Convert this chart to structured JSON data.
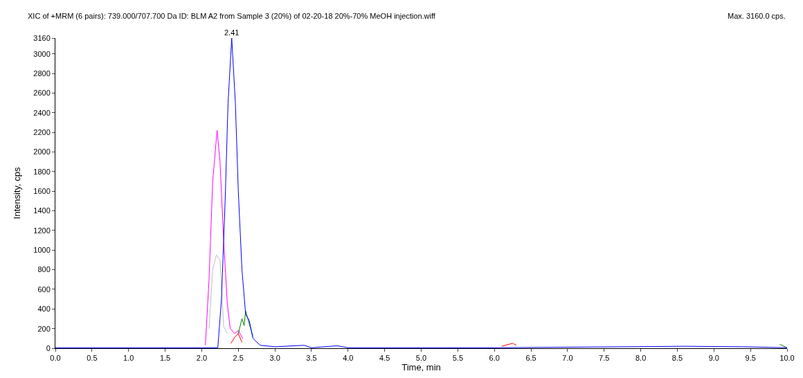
{
  "chart_data": {
    "type": "line",
    "title": "XIC of +MRM (6 pairs): 739.000/707.700 Da ID: BLM A2 from Sample 3 (20%) of 02-20-18 20%-70% MeOH injection.wiff",
    "subtitle": "Max. 3160.0 cps.",
    "xlabel": "Time, min",
    "ylabel": "Intensity, cps",
    "xlim": [
      0,
      10
    ],
    "ylim": [
      0,
      3160
    ],
    "xticks": [
      {
        "value": 0,
        "label": "0.0"
      },
      {
        "value": 0.5,
        "label": "0.5"
      },
      {
        "value": 1,
        "label": "1.0"
      },
      {
        "value": 1.5,
        "label": "1.5"
      },
      {
        "value": 2,
        "label": "2.0"
      },
      {
        "value": 2.5,
        "label": "2.5"
      },
      {
        "value": 3,
        "label": "3.0"
      },
      {
        "value": 3.5,
        "label": "3.5"
      },
      {
        "value": 4,
        "label": "4.0"
      },
      {
        "value": 4.5,
        "label": "4.5"
      },
      {
        "value": 5,
        "label": "5.0"
      },
      {
        "value": 5.5,
        "label": "5.5"
      },
      {
        "value": 6,
        "label": "6.0"
      },
      {
        "value": 6.5,
        "label": "6.5"
      },
      {
        "value": 7,
        "label": "7.0"
      },
      {
        "value": 7.5,
        "label": "7.5"
      },
      {
        "value": 8,
        "label": "8.0"
      },
      {
        "value": 8.5,
        "label": "8.5"
      },
      {
        "value": 9,
        "label": "9.0"
      },
      {
        "value": 9.5,
        "label": "9.5"
      },
      {
        "value": 10,
        "label": "10.0"
      }
    ],
    "yticks": [
      0,
      200,
      400,
      600,
      800,
      1000,
      1200,
      1400,
      1600,
      1800,
      2000,
      2200,
      2400,
      2600,
      2800,
      3000,
      3160
    ],
    "marker": "none",
    "line_style": "solid",
    "annotations": [
      {
        "text": "2.41",
        "x": 2.41,
        "y": 3160
      }
    ],
    "series": [
      {
        "color": "#c0c0c0",
        "x": [
          2.1,
          2.15,
          2.2,
          2.25,
          2.3,
          2.35
        ],
        "values": [
          200,
          800,
          950,
          900,
          220,
          150
        ]
      },
      {
        "color": "#ff00ff",
        "x": [
          2.05,
          2.1,
          2.15,
          2.21,
          2.25,
          2.3,
          2.35,
          2.39,
          2.45,
          2.5,
          2.56
        ],
        "values": [
          30,
          700,
          1700,
          2220,
          1900,
          1100,
          450,
          200,
          150,
          180,
          100
        ]
      },
      {
        "color": "#ff0000",
        "x": [
          2.4,
          2.45,
          2.5,
          2.55,
          null,
          6.1,
          6.25,
          6.3
        ],
        "values": [
          50,
          110,
          150,
          60,
          null,
          20,
          50,
          30
        ]
      },
      {
        "color": "#008000",
        "x": [
          2.5,
          2.55,
          2.58,
          2.6,
          2.63,
          2.7,
          null,
          9.9,
          10
        ],
        "values": [
          150,
          300,
          230,
          380,
          300,
          120,
          null,
          40,
          5
        ]
      },
      {
        "color": "#0000ff",
        "x": [
          0,
          2,
          2.22,
          2.27,
          2.32,
          2.36,
          2.41,
          2.46,
          2.5,
          2.55,
          2.6,
          2.65,
          2.7,
          2.8,
          3,
          3.4,
          3.5,
          3.85,
          4,
          6,
          8.6,
          9.4,
          10
        ],
        "values": [
          5,
          5,
          5,
          500,
          1500,
          2500,
          3160,
          2500,
          1600,
          800,
          350,
          280,
          100,
          30,
          15,
          30,
          5,
          25,
          5,
          5,
          20,
          15,
          5
        ]
      }
    ]
  }
}
